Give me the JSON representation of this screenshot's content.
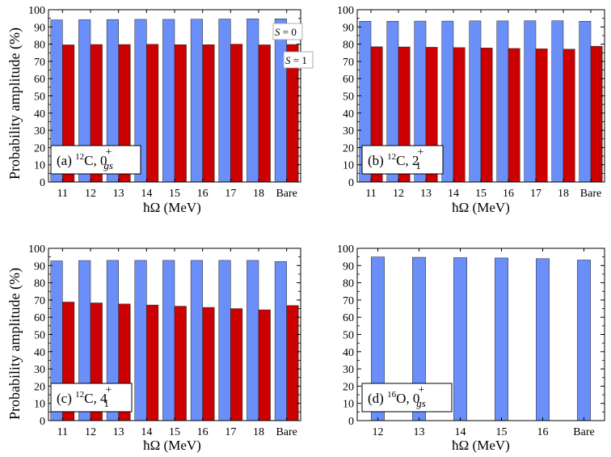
{
  "figure": {
    "ylabel": "Probability amplitude (%)",
    "xlabel": "ħΩ (MeV)",
    "colors": {
      "s0": "#6b8ff8",
      "s1": "#cc0000",
      "axis": "#000000"
    }
  },
  "chart_data": [
    {
      "type": "bar",
      "panel_label": "(a) ¹²C, 0⁺gs",
      "label_prefix": "(a) ",
      "label_nucleus_mass": "12",
      "label_element": "C, ",
      "label_state": "0",
      "label_sup": "+",
      "label_sub": "gs",
      "xlabel": "ħΩ (MeV)",
      "ylabel": "Probability amplitude (%)",
      "ylim": [
        0,
        100
      ],
      "yticks": [
        0,
        10,
        20,
        30,
        40,
        50,
        60,
        70,
        80,
        90,
        100
      ],
      "categories": [
        "11",
        "12",
        "13",
        "14",
        "15",
        "16",
        "17",
        "18",
        "Bare"
      ],
      "series": [
        {
          "name": "S = 0",
          "color": "#6b8ff8",
          "values": [
            94.1,
            94.2,
            94.3,
            94.4,
            94.4,
            94.5,
            94.6,
            94.7,
            94.7
          ]
        },
        {
          "name": "S = 1",
          "color": "#cc0000",
          "values": [
            79.6,
            79.8,
            79.8,
            79.9,
            79.7,
            79.7,
            80.0,
            79.6,
            79.8
          ]
        }
      ],
      "legend": {
        "s0_prefix": "S",
        "s0_suffix": " = 0",
        "s1_prefix": "S",
        "s1_suffix": " = 1",
        "placement": "top-right"
      }
    },
    {
      "type": "bar",
      "panel_label": "(b) ¹²C, 2⁺₁",
      "label_prefix": "(b) ",
      "label_nucleus_mass": "12",
      "label_element": "C, ",
      "label_state": "2",
      "label_sup": "+",
      "label_sub": "1",
      "xlabel": "ħΩ (MeV)",
      "ylabel": "",
      "ylim": [
        0,
        100
      ],
      "yticks": [
        0,
        10,
        20,
        30,
        40,
        50,
        60,
        70,
        80,
        90,
        100
      ],
      "categories": [
        "11",
        "12",
        "13",
        "14",
        "15",
        "16",
        "17",
        "18",
        "Bare"
      ],
      "series": [
        {
          "name": "S = 0",
          "color": "#6b8ff8",
          "values": [
            93.3,
            93.3,
            93.4,
            93.4,
            93.5,
            93.5,
            93.6,
            93.6,
            93.3
          ]
        },
        {
          "name": "S = 1",
          "color": "#cc0000",
          "values": [
            78.5,
            78.4,
            78.2,
            78.0,
            77.8,
            77.5,
            77.3,
            77.1,
            78.8
          ]
        }
      ]
    },
    {
      "type": "bar",
      "panel_label": "(c) ¹²C, 4⁺₁",
      "label_prefix": "(c) ",
      "label_nucleus_mass": "12",
      "label_element": "C, ",
      "label_state": "4",
      "label_sup": "+",
      "label_sub": "1",
      "xlabel": "ħΩ (MeV)",
      "ylabel": "Probability amplitude (%)",
      "ylim": [
        0,
        100
      ],
      "yticks": [
        0,
        10,
        20,
        30,
        40,
        50,
        60,
        70,
        80,
        90,
        100
      ],
      "categories": [
        "11",
        "12",
        "13",
        "14",
        "15",
        "16",
        "17",
        "18",
        "Bare"
      ],
      "series": [
        {
          "name": "S = 0",
          "color": "#6b8ff8",
          "values": [
            92.7,
            92.9,
            93.0,
            93.0,
            93.0,
            93.0,
            93.0,
            93.0,
            92.3
          ]
        },
        {
          "name": "S = 1",
          "color": "#cc0000",
          "values": [
            68.8,
            68.3,
            67.7,
            67.1,
            66.4,
            65.7,
            65.0,
            64.3,
            66.8
          ]
        }
      ]
    },
    {
      "type": "bar",
      "panel_label": "(d) ¹⁶O, 0⁺gs",
      "label_prefix": "(d) ",
      "label_nucleus_mass": "16",
      "label_element": "O, ",
      "label_state": "0",
      "label_sup": "+",
      "label_sub": "gs",
      "xlabel": "ħΩ (MeV)",
      "ylabel": "",
      "ylim": [
        0,
        100
      ],
      "yticks": [
        0,
        10,
        20,
        30,
        40,
        50,
        60,
        70,
        80,
        90,
        100
      ],
      "categories": [
        "12",
        "13",
        "14",
        "15",
        "16",
        "Bare"
      ],
      "series": [
        {
          "name": "S = 0",
          "color": "#6b8ff8",
          "values": [
            95.0,
            94.8,
            94.6,
            94.4,
            94.0,
            93.2
          ]
        }
      ]
    }
  ]
}
